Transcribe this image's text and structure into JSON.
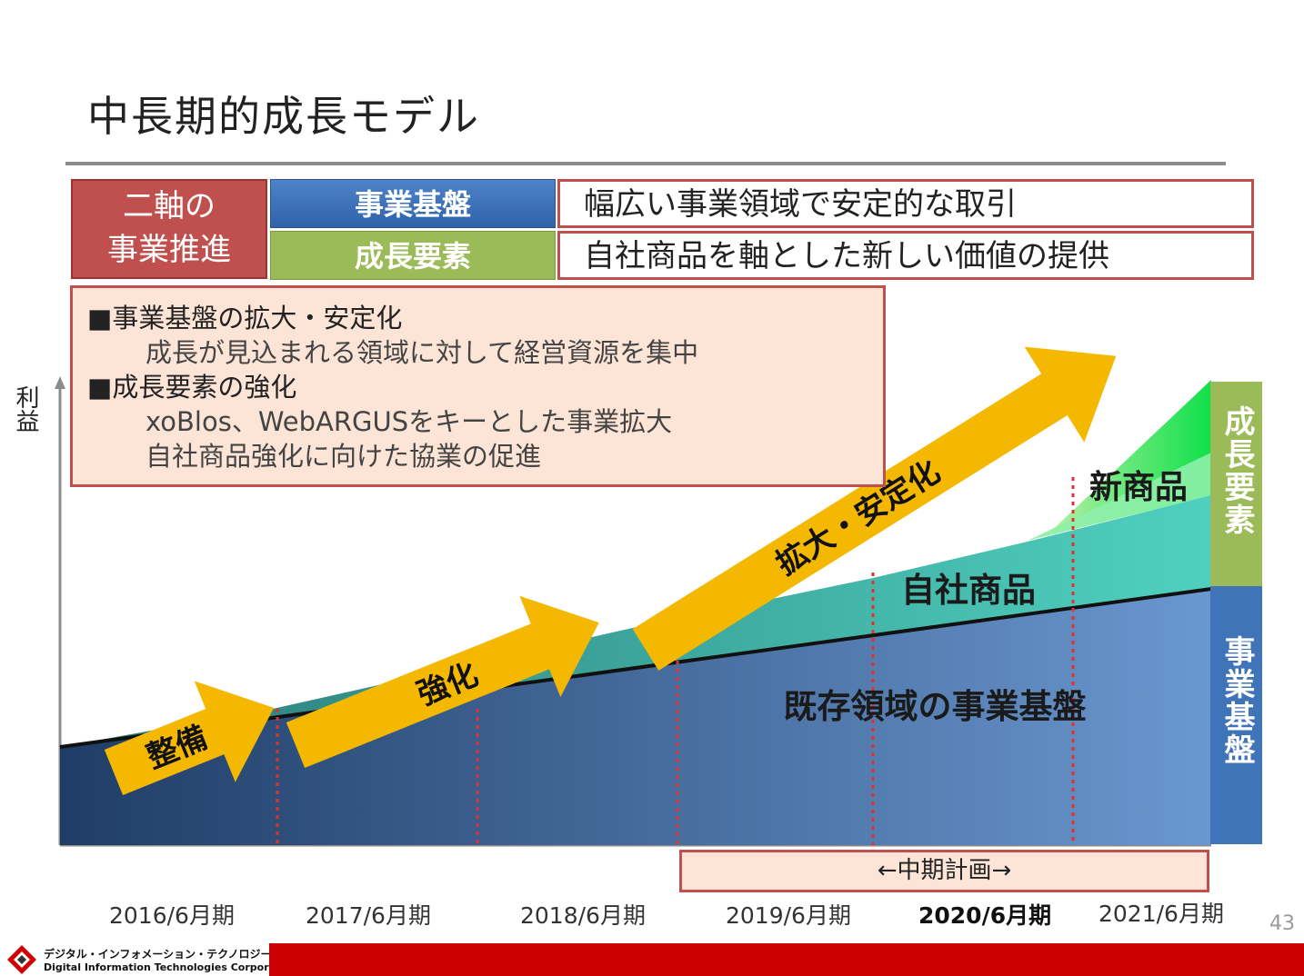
{
  "title": "中長期的成長モデル",
  "header_table": {
    "left_label_line1": "二軸の",
    "left_label_line2": "事業推進",
    "rows": [
      {
        "pill": "事業基盤",
        "desc": "幅広い事業領域で安定的な取引"
      },
      {
        "pill": "成長要素",
        "desc": "自社商品を軸とした新しい価値の提供"
      }
    ]
  },
  "notes": {
    "lines": [
      "■事業基盤の拡大・安定化",
      "成長が見込まれる領域に対して経営資源を集中",
      "■成長要素の強化",
      "xoBlos、WebARGUSをキーとした事業拡大",
      "自社商品強化に向けた協業の促進"
    ]
  },
  "diagram": {
    "y_label": "利益",
    "arrows": [
      "整備",
      "強化",
      "拡大・安定化"
    ],
    "areas": {
      "existing": "既存領域の事業基盤",
      "own_products": "自社商品",
      "new_products": "新商品"
    },
    "side_labels": {
      "growth": "成長要素",
      "base": "事業基盤"
    },
    "mid_term_plan": "←中期計画→",
    "years": [
      "2016/6月期",
      "2017/6月期",
      "2018/6月期",
      "2019/6月期",
      "2020/6月期",
      "2021/6月期"
    ],
    "highlight_year": "2020/6月期",
    "colors": {
      "base_dark": "#1f3d66",
      "base_light": "#6a97cf",
      "teal": "#3fb8a4",
      "green": "#2ee87a",
      "arrow": "#f5b800",
      "accent_red": "#c0504d"
    }
  },
  "page_number": "43",
  "footer": {
    "company_ja": "デジタル・インフォメーション・テクノロジー株式会社",
    "company_en": "Digital Information Technologies Corporation"
  }
}
